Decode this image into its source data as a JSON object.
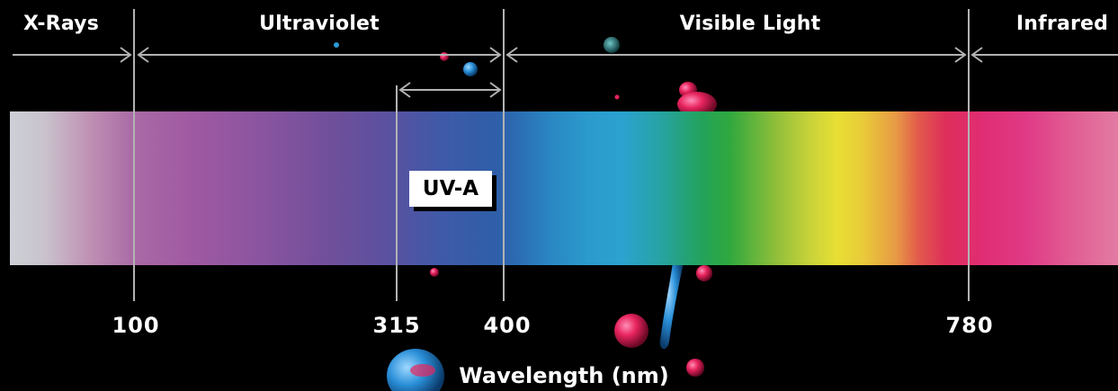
{
  "regions": {
    "xrays": "X-Rays",
    "ultraviolet": "Ultraviolet",
    "visible": "Visible Light",
    "infrared": "Infrared"
  },
  "band_label": "UV-A",
  "ticks": [
    "100",
    "315",
    "400",
    "780"
  ],
  "axis_title": "Wavelength (nm)",
  "colors": {
    "background": "#000000",
    "line": "#b3b3b3",
    "text": "#ffffff"
  }
}
